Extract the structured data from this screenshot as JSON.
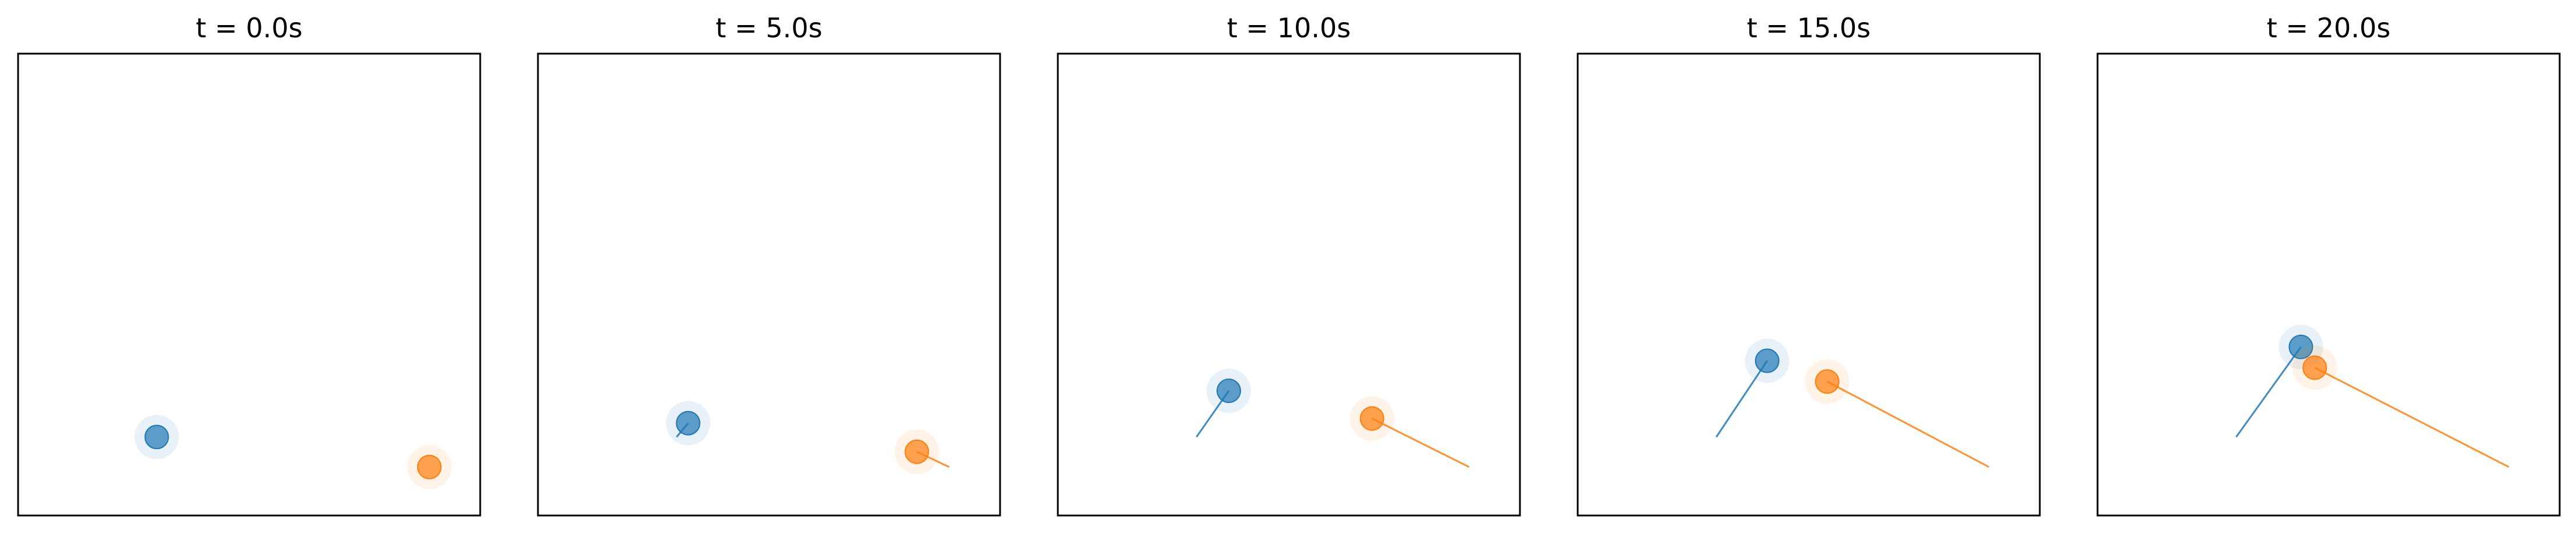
{
  "chart_data": {
    "type": "scatter",
    "axes_visible": false,
    "xlim": [
      0,
      10
    ],
    "ylim": [
      0,
      10
    ],
    "colors": {
      "blue": "#1f77b4",
      "orange": "#ff7f0e"
    },
    "panels": [
      {
        "title": "t = 0.0s",
        "tracks": [
          {
            "color": "#1f77b4",
            "trail": [
              [
                3.0,
                1.7
              ]
            ]
          },
          {
            "color": "#ff7f0e",
            "trail": [
              [
                8.9,
                1.05
              ]
            ]
          }
        ]
      },
      {
        "title": "t = 5.0s",
        "tracks": [
          {
            "color": "#1f77b4",
            "trail": [
              [
                3.0,
                1.7
              ],
              [
                3.25,
                2.0
              ]
            ]
          },
          {
            "color": "#ff7f0e",
            "trail": [
              [
                8.9,
                1.05
              ],
              [
                8.2,
                1.38
              ]
            ]
          }
        ]
      },
      {
        "title": "t = 10.0s",
        "tracks": [
          {
            "color": "#1f77b4",
            "trail": [
              [
                3.0,
                1.7
              ],
              [
                3.7,
                2.7
              ]
            ]
          },
          {
            "color": "#ff7f0e",
            "trail": [
              [
                8.9,
                1.05
              ],
              [
                6.8,
                2.1
              ]
            ]
          }
        ]
      },
      {
        "title": "t = 15.0s",
        "tracks": [
          {
            "color": "#1f77b4",
            "trail": [
              [
                3.0,
                1.7
              ],
              [
                4.1,
                3.35
              ]
            ]
          },
          {
            "color": "#ff7f0e",
            "trail": [
              [
                8.9,
                1.05
              ],
              [
                5.4,
                2.9
              ]
            ]
          }
        ]
      },
      {
        "title": "t = 20.0s",
        "tracks": [
          {
            "color": "#1f77b4",
            "trail": [
              [
                3.0,
                1.7
              ],
              [
                4.4,
                3.65
              ]
            ]
          },
          {
            "color": "#ff7f0e",
            "trail": [
              [
                8.9,
                1.05
              ],
              [
                4.7,
                3.2
              ]
            ]
          }
        ]
      }
    ]
  }
}
